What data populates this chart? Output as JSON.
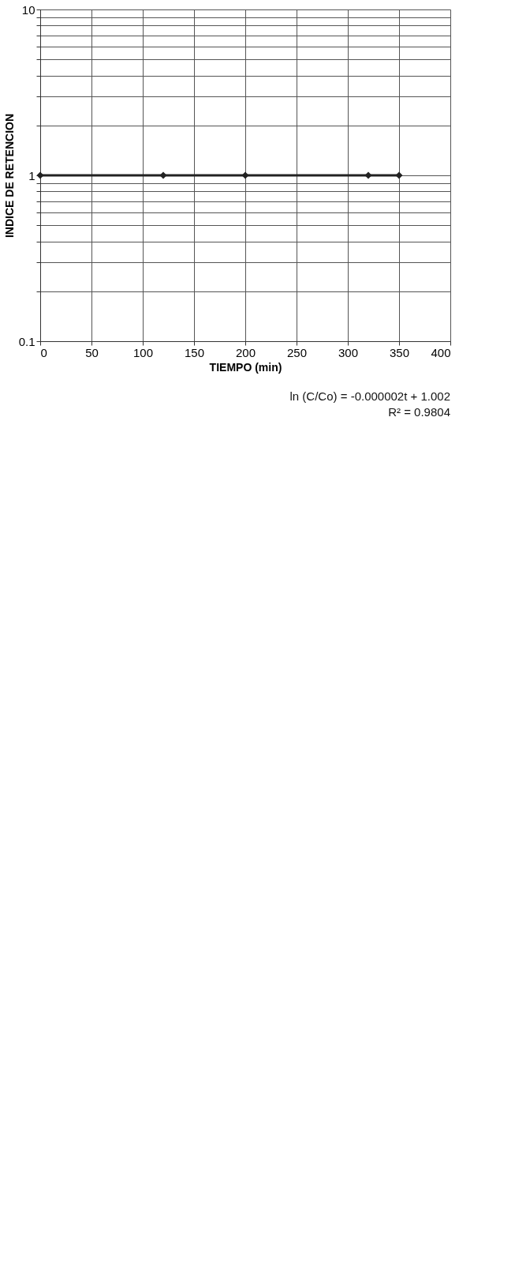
{
  "chart_data": {
    "type": "line",
    "xlabel": "TIEMPO (min)",
    "ylabel": "INDICE DE RETENCION",
    "x": [
      0,
      120,
      200,
      320,
      350
    ],
    "series": [
      {
        "color": "#222222",
        "values": [
          1,
          1,
          1,
          1,
          1
        ]
      }
    ],
    "marker": "diamond",
    "line_style": "solid",
    "log": "y",
    "grid": true,
    "xlim": [
      0,
      400
    ],
    "xticks": [
      0,
      50,
      100,
      150,
      200,
      250,
      300,
      350,
      400
    ],
    "ylim": [
      0.1,
      10
    ],
    "yticks": [
      0.1,
      {
        "value": 0.2,
        "label": null
      },
      {
        "value": 0.3,
        "label": null
      },
      {
        "value": 0.4,
        "label": null
      },
      {
        "value": 0.5,
        "label": null
      },
      {
        "value": 0.6,
        "label": null
      },
      {
        "value": 0.7,
        "label": null
      },
      {
        "value": 0.8,
        "label": null
      },
      {
        "value": 0.9,
        "label": null
      },
      1,
      {
        "value": 2,
        "label": null
      },
      {
        "value": 3,
        "label": null
      },
      {
        "value": 4,
        "label": null
      },
      {
        "value": 5,
        "label": null
      },
      {
        "value": 6,
        "label": null
      },
      {
        "value": 7,
        "label": null
      },
      {
        "value": 8,
        "label": null
      },
      {
        "value": 9,
        "label": null
      },
      10
    ],
    "annotations": [
      "ln (C/Co) = -0.000002t + 1.002",
      "R² = 0.9804"
    ]
  }
}
